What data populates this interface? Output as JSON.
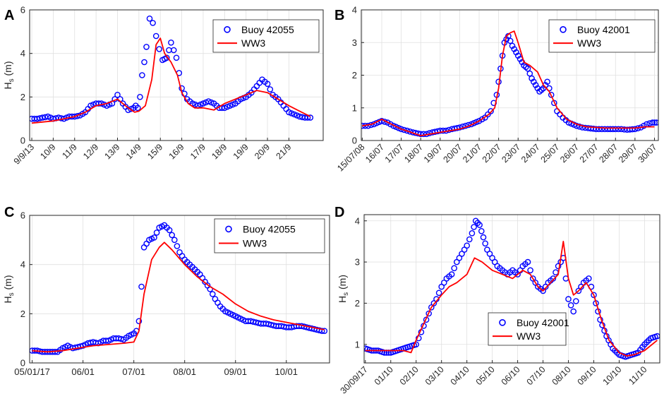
{
  "chart_data": [
    {
      "type": "line",
      "panel_label": "A",
      "ylabel_main": "H",
      "ylabel_sub": "s",
      "ylabel_unit": " (m)",
      "xlabel": "",
      "ylim": [
        0,
        6
      ],
      "yticks": [
        0,
        2,
        4,
        6
      ],
      "xlim": [
        -0.1,
        13.6
      ],
      "xtick_positions": [
        0,
        1,
        2,
        3,
        4,
        5,
        6,
        7,
        8,
        9,
        10,
        11,
        12
      ],
      "xtick_labels": [
        "9/9/13",
        "10/9",
        "11/9",
        "12/9",
        "13/9",
        "14/9",
        "15/9",
        "16/9",
        "17/9",
        "18/9",
        "19/9",
        "20/9",
        "21/9"
      ],
      "legend": [
        "Buoy 42055",
        "WW3"
      ],
      "legend_position": "top-right",
      "series": [
        {
          "name": "Buoy 42055",
          "kind": "scatter",
          "color": "#0000FF",
          "x": [
            0,
            0.25,
            0.5,
            0.75,
            1,
            1.25,
            1.5,
            1.75,
            2,
            2.25,
            2.5,
            2.75,
            3,
            3.25,
            3.5,
            3.75,
            4,
            4.25,
            4.5,
            4.75,
            4.85,
            4.95,
            5.05,
            5.15,
            5.25,
            5.35,
            5.5,
            5.65,
            5.8,
            5.95,
            6.1,
            6.3,
            6.5,
            6.75,
            7,
            7.25,
            7.5,
            7.75,
            8,
            8.25,
            8.5,
            8.75,
            9,
            9.25,
            9.5,
            9.75,
            10,
            10.25,
            10.5,
            10.75,
            11,
            11.25,
            11.5,
            11.75,
            12,
            12.25,
            12.5,
            12.75,
            13
          ],
          "y": [
            1.0,
            1.0,
            1.05,
            1.1,
            1.0,
            1.05,
            1.0,
            1.1,
            1.1,
            1.15,
            1.3,
            1.6,
            1.7,
            1.7,
            1.6,
            1.7,
            2.1,
            1.7,
            1.4,
            1.5,
            1.6,
            1.5,
            2.0,
            3.0,
            3.6,
            4.3,
            5.6,
            5.4,
            4.8,
            4.2,
            3.7,
            3.8,
            4.5,
            3.8,
            2.4,
            1.9,
            1.7,
            1.6,
            1.7,
            1.8,
            1.7,
            1.5,
            1.5,
            1.6,
            1.7,
            1.9,
            2.0,
            2.2,
            2.5,
            2.8,
            2.6,
            2.1,
            1.9,
            1.6,
            1.3,
            1.2,
            1.1,
            1.05,
            1.05
          ]
        },
        {
          "name": "WW3",
          "kind": "line",
          "color": "#FF0000",
          "x": [
            0,
            0.5,
            1,
            1.5,
            2,
            2.5,
            3,
            3.5,
            4,
            4.5,
            4.8,
            5,
            5.3,
            5.6,
            5.8,
            6,
            6.2,
            6.5,
            6.8,
            7,
            7.3,
            7.6,
            8,
            8.5,
            9,
            9.5,
            10,
            10.5,
            11,
            11.5,
            12,
            12.5,
            13
          ],
          "y": [
            0.8,
            0.85,
            0.9,
            1.0,
            1.1,
            1.3,
            1.6,
            1.7,
            1.9,
            1.5,
            1.3,
            1.35,
            1.6,
            2.8,
            4.4,
            4.7,
            4.0,
            3.6,
            3.0,
            2.2,
            1.7,
            1.5,
            1.5,
            1.4,
            1.7,
            1.9,
            2.1,
            2.3,
            2.2,
            1.9,
            1.6,
            1.35,
            1.1
          ]
        }
      ]
    },
    {
      "type": "line",
      "panel_label": "B",
      "ylabel_main": "",
      "ylabel_sub": "",
      "ylabel_unit": "",
      "xlabel": "",
      "ylim": [
        0,
        4
      ],
      "yticks": [
        0,
        1,
        2,
        3,
        4
      ],
      "xlim": [
        -0.05,
        15.2
      ],
      "xtick_positions": [
        0,
        1,
        2,
        3,
        4,
        5,
        6,
        7,
        8,
        9,
        10,
        11,
        12,
        13,
        14,
        15
      ],
      "xtick_labels": [
        "15/07/08",
        "16/07",
        "17/07",
        "18/07",
        "19/07",
        "20/07",
        "21/07",
        "22/07",
        "23/07",
        "24/07",
        "25/07",
        "26/07",
        "27/07",
        "28/07",
        "29/07",
        "30/07"
      ],
      "legend": [
        "Buoy 42001",
        "WW3"
      ],
      "legend_position": "top-right",
      "series": [
        {
          "name": "Buoy 42001",
          "kind": "scatter",
          "color": "#0000FF",
          "x": [
            0,
            0.3,
            0.6,
            1,
            1.3,
            1.6,
            2,
            2.3,
            2.6,
            3,
            3.3,
            3.6,
            4,
            4.3,
            4.6,
            5,
            5.3,
            5.6,
            6,
            6.3,
            6.6,
            6.9,
            7.1,
            7.3,
            7.5,
            7.7,
            7.9,
            8.1,
            8.3,
            8.5,
            8.7,
            8.9,
            9.1,
            9.3,
            9.5,
            9.7,
            10,
            10.3,
            10.6,
            11,
            11.3,
            11.6,
            12,
            12.3,
            12.6,
            13,
            13.3,
            13.6,
            14,
            14.3,
            14.6,
            14.9,
            15.1
          ],
          "y": [
            0.45,
            0.45,
            0.5,
            0.6,
            0.55,
            0.45,
            0.35,
            0.3,
            0.25,
            0.2,
            0.2,
            0.25,
            0.3,
            0.3,
            0.35,
            0.4,
            0.45,
            0.5,
            0.6,
            0.7,
            0.9,
            1.4,
            2.2,
            3.0,
            3.2,
            2.9,
            2.7,
            2.5,
            2.3,
            2.2,
            1.9,
            1.7,
            1.5,
            1.6,
            1.8,
            1.4,
            0.9,
            0.7,
            0.55,
            0.45,
            0.4,
            0.38,
            0.35,
            0.35,
            0.35,
            0.35,
            0.35,
            0.33,
            0.35,
            0.4,
            0.5,
            0.55,
            0.55
          ]
        },
        {
          "name": "WW3",
          "kind": "line",
          "color": "#FF0000",
          "x": [
            0,
            0.5,
            1,
            1.5,
            2,
            2.5,
            3,
            3.5,
            4,
            4.5,
            5,
            5.5,
            6,
            6.5,
            6.8,
            7,
            7.2,
            7.4,
            7.6,
            7.8,
            8,
            8.3,
            8.6,
            9,
            9.3,
            9.6,
            10,
            10.5,
            11,
            11.5,
            12,
            12.5,
            13,
            13.5,
            14,
            14.5,
            15
          ],
          "y": [
            0.45,
            0.5,
            0.65,
            0.5,
            0.35,
            0.25,
            0.15,
            0.2,
            0.25,
            0.3,
            0.35,
            0.45,
            0.6,
            0.8,
            1.0,
            1.6,
            2.6,
            3.2,
            3.3,
            3.35,
            3.0,
            2.4,
            2.3,
            2.1,
            1.7,
            1.5,
            1.0,
            0.65,
            0.5,
            0.42,
            0.4,
            0.38,
            0.38,
            0.38,
            0.38,
            0.42,
            0.42
          ]
        }
      ]
    },
    {
      "type": "line",
      "panel_label": "C",
      "ylabel_main": "H",
      "ylabel_sub": "s",
      "ylabel_unit": " (m)",
      "xlabel": "",
      "ylim": [
        0,
        6
      ],
      "yticks": [
        0,
        2,
        4,
        6
      ],
      "xlim": [
        -0.05,
        5.85
      ],
      "xtick_positions": [
        0,
        1,
        2,
        3,
        4,
        5
      ],
      "xtick_labels": [
        "05/01/17",
        "06/01",
        "07/01",
        "08/01",
        "09/01",
        "10/01"
      ],
      "legend": [
        "Buoy 42055",
        "WW3"
      ],
      "legend_position": "top-right",
      "series": [
        {
          "name": "Buoy 42055",
          "kind": "scatter",
          "color": "#0000FF",
          "x": [
            0,
            0.1,
            0.2,
            0.3,
            0.4,
            0.5,
            0.6,
            0.7,
            0.8,
            0.9,
            1,
            1.1,
            1.2,
            1.3,
            1.4,
            1.5,
            1.6,
            1.7,
            1.8,
            1.9,
            2,
            2.05,
            2.1,
            2.15,
            2.2,
            2.3,
            2.4,
            2.5,
            2.6,
            2.7,
            2.8,
            2.9,
            3,
            3.1,
            3.2,
            3.3,
            3.4,
            3.5,
            3.6,
            3.7,
            3.8,
            3.9,
            4,
            4.1,
            4.2,
            4.3,
            4.4,
            4.5,
            4.6,
            4.7,
            4.8,
            4.9,
            5,
            5.1,
            5.2,
            5.3,
            5.4,
            5.5,
            5.6,
            5.7,
            5.75
          ],
          "y": [
            0.5,
            0.5,
            0.45,
            0.45,
            0.45,
            0.45,
            0.6,
            0.7,
            0.6,
            0.65,
            0.7,
            0.8,
            0.85,
            0.8,
            0.9,
            0.9,
            1.0,
            1.0,
            0.95,
            1.1,
            1.2,
            1.3,
            1.7,
            3.1,
            4.7,
            5.0,
            5.1,
            5.5,
            5.6,
            5.4,
            5.0,
            4.5,
            4.2,
            4.0,
            3.8,
            3.6,
            3.3,
            3.0,
            2.6,
            2.3,
            2.1,
            2.0,
            1.9,
            1.8,
            1.7,
            1.7,
            1.65,
            1.6,
            1.6,
            1.55,
            1.5,
            1.5,
            1.45,
            1.45,
            1.5,
            1.5,
            1.45,
            1.4,
            1.35,
            1.3,
            1.3
          ]
        },
        {
          "name": "WW3",
          "kind": "line",
          "color": "#FF0000",
          "x": [
            0,
            0.3,
            0.6,
            0.9,
            1.2,
            1.5,
            1.8,
            2.0,
            2.1,
            2.2,
            2.35,
            2.5,
            2.6,
            2.75,
            3.0,
            3.25,
            3.5,
            3.75,
            4.0,
            4.25,
            4.5,
            4.75,
            5.0,
            5.25,
            5.5,
            5.75
          ],
          "y": [
            0.5,
            0.45,
            0.5,
            0.6,
            0.7,
            0.75,
            0.8,
            0.85,
            1.3,
            2.8,
            4.2,
            4.7,
            4.9,
            4.6,
            4.0,
            3.5,
            3.1,
            2.8,
            2.4,
            2.1,
            1.9,
            1.75,
            1.65,
            1.55,
            1.45,
            1.35
          ]
        }
      ]
    },
    {
      "type": "line",
      "panel_label": "D",
      "ylabel_main": "H",
      "ylabel_sub": "s",
      "ylabel_unit": " (m)",
      "xlabel": "",
      "ylim": [
        0.55,
        4.15
      ],
      "yticks": [
        1,
        2,
        3,
        4
      ],
      "xlim": [
        -0.05,
        11.6
      ],
      "xtick_positions": [
        0,
        1,
        2,
        3,
        4,
        5,
        6,
        7,
        8,
        9,
        10,
        11
      ],
      "xtick_labels": [
        "30/09/17",
        "01/10",
        "02/10",
        "03/10",
        "04/10",
        "05/10",
        "06/10",
        "07/10",
        "08/10",
        "09/10",
        "10/10",
        "11/10"
      ],
      "legend": [
        "Buoy 42001",
        "WW3"
      ],
      "legend_position": "bottom-center",
      "series": [
        {
          "name": "Buoy 42001",
          "kind": "scatter",
          "color": "#0000FF",
          "x": [
            0,
            0.25,
            0.5,
            0.75,
            1,
            1.25,
            1.5,
            1.75,
            2,
            2.2,
            2.4,
            2.6,
            2.8,
            3,
            3.2,
            3.4,
            3.6,
            3.8,
            4,
            4.2,
            4.35,
            4.5,
            4.65,
            4.8,
            5,
            5.2,
            5.4,
            5.6,
            5.8,
            6,
            6.2,
            6.4,
            6.6,
            6.8,
            7,
            7.2,
            7.4,
            7.6,
            7.8,
            8,
            8.2,
            8.4,
            8.6,
            8.8,
            9,
            9.25,
            9.5,
            9.75,
            10,
            10.25,
            10.5,
            10.75,
            11,
            11.25,
            11.5
          ],
          "y": [
            0.9,
            0.85,
            0.85,
            0.8,
            0.8,
            0.85,
            0.9,
            0.95,
            1.0,
            1.3,
            1.6,
            1.9,
            2.1,
            2.4,
            2.6,
            2.7,
            3.0,
            3.2,
            3.4,
            3.7,
            4.0,
            3.9,
            3.6,
            3.3,
            3.1,
            2.9,
            2.8,
            2.7,
            2.8,
            2.7,
            2.9,
            3.0,
            2.6,
            2.4,
            2.3,
            2.5,
            2.6,
            2.9,
            3.1,
            2.1,
            1.8,
            2.3,
            2.5,
            2.6,
            2.2,
            1.6,
            1.2,
            0.9,
            0.75,
            0.7,
            0.75,
            0.8,
            1.0,
            1.15,
            1.2
          ]
        },
        {
          "name": "WW3",
          "kind": "line",
          "color": "#FF0000",
          "x": [
            0,
            0.5,
            1,
            1.5,
            1.8,
            2.0,
            2.3,
            2.6,
            3.0,
            3.3,
            3.6,
            4.0,
            4.3,
            4.6,
            5.0,
            5.4,
            5.8,
            6.2,
            6.5,
            6.8,
            7.0,
            7.3,
            7.6,
            7.8,
            8.0,
            8.2,
            8.4,
            8.7,
            9.0,
            9.3,
            9.6,
            10.0,
            10.3,
            10.6,
            11,
            11.5
          ],
          "y": [
            0.85,
            0.85,
            0.85,
            0.85,
            0.8,
            1.1,
            1.5,
            1.9,
            2.2,
            2.4,
            2.5,
            2.7,
            3.1,
            3.0,
            2.8,
            2.7,
            2.6,
            2.8,
            2.7,
            2.4,
            2.3,
            2.5,
            2.7,
            3.5,
            2.6,
            2.2,
            2.3,
            2.5,
            2.2,
            1.6,
            1.1,
            0.8,
            0.72,
            0.75,
            0.85,
            1.1
          ]
        }
      ]
    }
  ]
}
